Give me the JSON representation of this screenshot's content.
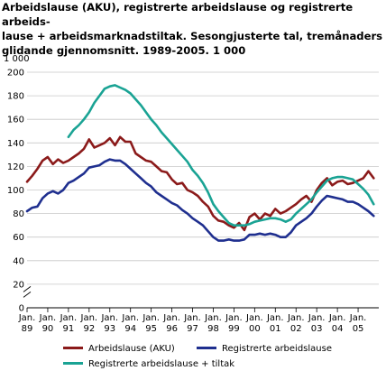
{
  "chart_data": {
    "type": "line",
    "title_lines": [
      "Arbeidslause (AKU), registrerte arbeidslause og registrerte arbeids-",
      "lause + arbeidsmarknadstiltak. Sesongjusterte tal, tremånaders",
      "glidande gjennomsnitt. 1989-2005. 1 000"
    ],
    "unit_label": "1 000",
    "xlabel": "",
    "ylabel": "",
    "ylim": [
      0,
      200
    ],
    "y_ticks": [
      0,
      20,
      40,
      60,
      80,
      100,
      120,
      140,
      160,
      180,
      200
    ],
    "x_ticks": [
      {
        "top": "Jan.",
        "bottom": "89"
      },
      {
        "top": "Jan.",
        "bottom": "90"
      },
      {
        "top": "Jan.",
        "bottom": "91"
      },
      {
        "top": "Jan.",
        "bottom": "92"
      },
      {
        "top": "Jan.",
        "bottom": "93"
      },
      {
        "top": "Jan.",
        "bottom": "94"
      },
      {
        "top": "Jan.",
        "bottom": "95"
      },
      {
        "top": "Jan.",
        "bottom": "96"
      },
      {
        "top": "Jan.",
        "bottom": "97"
      },
      {
        "top": "Jan.",
        "bottom": "98"
      },
      {
        "top": "Jan.",
        "bottom": "99"
      },
      {
        "top": "Jan.",
        "bottom": "00"
      },
      {
        "top": "Jan.",
        "bottom": "01"
      },
      {
        "top": "Jan.",
        "bottom": "02"
      },
      {
        "top": "Jan.",
        "bottom": "03"
      },
      {
        "top": "Jan.",
        "bottom": "04"
      },
      {
        "top": "Jan.",
        "bottom": "05"
      }
    ],
    "x_start": 1989.0,
    "x_end": 2006.0,
    "grid": "horizontal",
    "legend_position": "bottom",
    "series": [
      {
        "name": "Arbeidslause (AKU)",
        "color": "#8b1a1a",
        "points": [
          [
            1989.0,
            107
          ],
          [
            1989.25,
            112
          ],
          [
            1989.5,
            118
          ],
          [
            1989.75,
            125
          ],
          [
            1990.0,
            128
          ],
          [
            1990.25,
            122
          ],
          [
            1990.5,
            126
          ],
          [
            1990.75,
            123
          ],
          [
            1991.0,
            125
          ],
          [
            1991.25,
            128
          ],
          [
            1991.5,
            131
          ],
          [
            1991.75,
            135
          ],
          [
            1992.0,
            143
          ],
          [
            1992.25,
            136
          ],
          [
            1992.5,
            138
          ],
          [
            1992.75,
            140
          ],
          [
            1993.0,
            144
          ],
          [
            1993.25,
            138
          ],
          [
            1993.5,
            145
          ],
          [
            1993.75,
            141
          ],
          [
            1994.0,
            141
          ],
          [
            1994.25,
            131
          ],
          [
            1994.5,
            128
          ],
          [
            1994.75,
            125
          ],
          [
            1995.0,
            124
          ],
          [
            1995.25,
            120
          ],
          [
            1995.5,
            116
          ],
          [
            1995.75,
            115
          ],
          [
            1996.0,
            109
          ],
          [
            1996.25,
            105
          ],
          [
            1996.5,
            106
          ],
          [
            1996.75,
            100
          ],
          [
            1997.0,
            98
          ],
          [
            1997.25,
            95
          ],
          [
            1997.5,
            90
          ],
          [
            1997.75,
            86
          ],
          [
            1998.0,
            78
          ],
          [
            1998.25,
            74
          ],
          [
            1998.5,
            73
          ],
          [
            1998.75,
            70
          ],
          [
            1999.0,
            68
          ],
          [
            1999.25,
            72
          ],
          [
            1999.5,
            66
          ],
          [
            1999.75,
            77
          ],
          [
            2000.0,
            80
          ],
          [
            2000.25,
            75
          ],
          [
            2000.5,
            80
          ],
          [
            2000.75,
            78
          ],
          [
            2001.0,
            84
          ],
          [
            2001.25,
            80
          ],
          [
            2001.5,
            82
          ],
          [
            2001.75,
            85
          ],
          [
            2002.0,
            88
          ],
          [
            2002.25,
            92
          ],
          [
            2002.5,
            95
          ],
          [
            2002.75,
            90
          ],
          [
            2003.0,
            100
          ],
          [
            2003.25,
            106
          ],
          [
            2003.5,
            110
          ],
          [
            2003.75,
            104
          ],
          [
            2004.0,
            107
          ],
          [
            2004.25,
            108
          ],
          [
            2004.5,
            105
          ],
          [
            2004.75,
            106
          ],
          [
            2005.0,
            108
          ],
          [
            2005.25,
            110
          ],
          [
            2005.5,
            116
          ],
          [
            2005.75,
            110
          ]
        ]
      },
      {
        "name": "Registrerte arbeidslause",
        "color": "#1f2f8f",
        "points": [
          [
            1989.0,
            82
          ],
          [
            1989.25,
            85
          ],
          [
            1989.5,
            86
          ],
          [
            1989.75,
            93
          ],
          [
            1990.0,
            97
          ],
          [
            1990.25,
            99
          ],
          [
            1990.5,
            97
          ],
          [
            1990.75,
            100
          ],
          [
            1991.0,
            106
          ],
          [
            1991.25,
            108
          ],
          [
            1991.5,
            111
          ],
          [
            1991.75,
            114
          ],
          [
            1992.0,
            119
          ],
          [
            1992.25,
            120
          ],
          [
            1992.5,
            121
          ],
          [
            1992.75,
            124
          ],
          [
            1993.0,
            126
          ],
          [
            1993.25,
            125
          ],
          [
            1993.5,
            125
          ],
          [
            1993.75,
            122
          ],
          [
            1994.0,
            118
          ],
          [
            1994.25,
            114
          ],
          [
            1994.5,
            110
          ],
          [
            1994.75,
            106
          ],
          [
            1995.0,
            103
          ],
          [
            1995.25,
            98
          ],
          [
            1995.5,
            95
          ],
          [
            1995.75,
            92
          ],
          [
            1996.0,
            89
          ],
          [
            1996.25,
            87
          ],
          [
            1996.5,
            83
          ],
          [
            1996.75,
            80
          ],
          [
            1997.0,
            76
          ],
          [
            1997.25,
            73
          ],
          [
            1997.5,
            70
          ],
          [
            1997.75,
            65
          ],
          [
            1998.0,
            60
          ],
          [
            1998.25,
            57
          ],
          [
            1998.5,
            57
          ],
          [
            1998.75,
            58
          ],
          [
            1999.0,
            57
          ],
          [
            1999.25,
            57
          ],
          [
            1999.5,
            58
          ],
          [
            1999.75,
            62
          ],
          [
            2000.0,
            62
          ],
          [
            2000.25,
            63
          ],
          [
            2000.5,
            62
          ],
          [
            2000.75,
            63
          ],
          [
            2001.0,
            62
          ],
          [
            2001.25,
            60
          ],
          [
            2001.5,
            60
          ],
          [
            2001.75,
            64
          ],
          [
            2002.0,
            70
          ],
          [
            2002.25,
            73
          ],
          [
            2002.5,
            76
          ],
          [
            2002.75,
            80
          ],
          [
            2003.0,
            86
          ],
          [
            2003.25,
            91
          ],
          [
            2003.5,
            95
          ],
          [
            2003.75,
            94
          ],
          [
            2004.0,
            93
          ],
          [
            2004.25,
            92
          ],
          [
            2004.5,
            90
          ],
          [
            2004.75,
            90
          ],
          [
            2005.0,
            88
          ],
          [
            2005.25,
            85
          ],
          [
            2005.5,
            82
          ],
          [
            2005.75,
            78
          ]
        ]
      },
      {
        "name": "Registrerte arbeidslause + tiltak",
        "color": "#1aa394",
        "points": [
          [
            1991.0,
            145
          ],
          [
            1991.25,
            151
          ],
          [
            1991.5,
            155
          ],
          [
            1991.75,
            160
          ],
          [
            1992.0,
            166
          ],
          [
            1992.25,
            174
          ],
          [
            1992.5,
            180
          ],
          [
            1992.75,
            186
          ],
          [
            1993.0,
            188
          ],
          [
            1993.25,
            189
          ],
          [
            1993.5,
            187
          ],
          [
            1993.75,
            185
          ],
          [
            1994.0,
            182
          ],
          [
            1994.25,
            177
          ],
          [
            1994.5,
            172
          ],
          [
            1994.75,
            166
          ],
          [
            1995.0,
            160
          ],
          [
            1995.25,
            155
          ],
          [
            1995.5,
            149
          ],
          [
            1995.75,
            144
          ],
          [
            1996.0,
            139
          ],
          [
            1996.25,
            134
          ],
          [
            1996.5,
            129
          ],
          [
            1996.75,
            124
          ],
          [
            1997.0,
            117
          ],
          [
            1997.25,
            112
          ],
          [
            1997.5,
            106
          ],
          [
            1997.75,
            98
          ],
          [
            1998.0,
            88
          ],
          [
            1998.25,
            82
          ],
          [
            1998.5,
            77
          ],
          [
            1998.75,
            72
          ],
          [
            1999.0,
            70
          ],
          [
            1999.25,
            70
          ],
          [
            1999.5,
            70
          ],
          [
            1999.75,
            71
          ],
          [
            2000.0,
            73
          ],
          [
            2000.25,
            74
          ],
          [
            2000.5,
            75
          ],
          [
            2000.75,
            76
          ],
          [
            2001.0,
            76
          ],
          [
            2001.25,
            75
          ],
          [
            2001.5,
            73
          ],
          [
            2001.75,
            75
          ],
          [
            2002.0,
            80
          ],
          [
            2002.25,
            84
          ],
          [
            2002.5,
            88
          ],
          [
            2002.75,
            92
          ],
          [
            2003.0,
            98
          ],
          [
            2003.25,
            103
          ],
          [
            2003.5,
            108
          ],
          [
            2003.75,
            110
          ],
          [
            2004.0,
            111
          ],
          [
            2004.25,
            111
          ],
          [
            2004.5,
            110
          ],
          [
            2004.75,
            109
          ],
          [
            2005.0,
            105
          ],
          [
            2005.25,
            101
          ],
          [
            2005.5,
            96
          ],
          [
            2005.75,
            88
          ]
        ]
      }
    ]
  }
}
